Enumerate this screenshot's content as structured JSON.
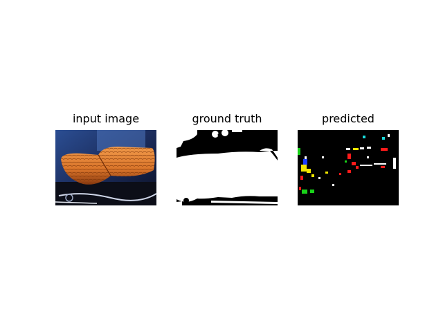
{
  "figure": {
    "panels": [
      {
        "title": "input image"
      },
      {
        "title": "ground truth"
      },
      {
        "title": "predicted"
      }
    ]
  },
  "colors": {
    "background": "#ffffff",
    "mask_foreground": "#ffffff",
    "mask_background": "#000000",
    "seat_orange": "#d9742a",
    "pred_red": "#ff1a1a",
    "pred_yellow": "#f2e600",
    "pred_green": "#19d219",
    "pred_blue": "#1a3cff",
    "pred_cyan": "#19d9d9"
  }
}
